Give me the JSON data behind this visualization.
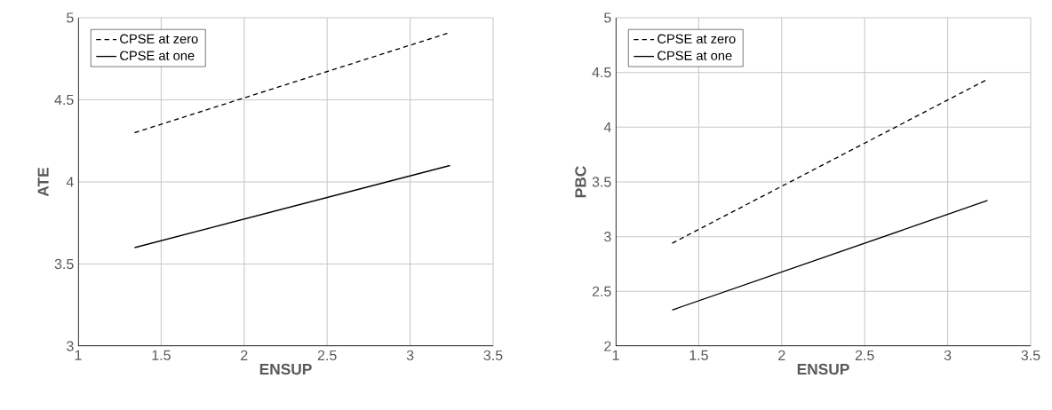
{
  "chart_data": [
    {
      "type": "line",
      "xlabel": "ENSUP",
      "ylabel": "ATE",
      "xlim": [
        1,
        3.5
      ],
      "ylim": [
        3,
        5
      ],
      "xticks": [
        1,
        1.5,
        2,
        2.5,
        3,
        3.5
      ],
      "yticks": [
        3,
        3.5,
        4,
        4.5,
        5
      ],
      "grid": true,
      "legend": "top left",
      "series": [
        {
          "name": "CPSE at zero",
          "color": "#000000",
          "line_style": "dashed",
          "x": [
            1.34,
            3.24
          ],
          "values": [
            4.3,
            4.91
          ]
        },
        {
          "name": "CPSE at one",
          "color": "#000000",
          "line_style": "solid",
          "x": [
            1.34,
            3.24
          ],
          "values": [
            3.6,
            4.1
          ]
        }
      ]
    },
    {
      "type": "line",
      "xlabel": "ENSUP",
      "ylabel": "PBC",
      "xlim": [
        1,
        3.5
      ],
      "ylim": [
        2,
        5
      ],
      "xticks": [
        1,
        1.5,
        2,
        2.5,
        3,
        3.5
      ],
      "yticks": [
        2,
        2.5,
        3,
        3.5,
        4,
        4.5,
        5
      ],
      "grid": true,
      "legend": "top left",
      "series": [
        {
          "name": "CPSE at zero",
          "color": "#000000",
          "line_style": "dashed",
          "x": [
            1.34,
            3.23
          ],
          "values": [
            2.94,
            4.43
          ]
        },
        {
          "name": "CPSE at one",
          "color": "#000000",
          "line_style": "solid",
          "x": [
            1.34,
            3.24
          ],
          "values": [
            2.33,
            3.33
          ]
        }
      ]
    }
  ]
}
